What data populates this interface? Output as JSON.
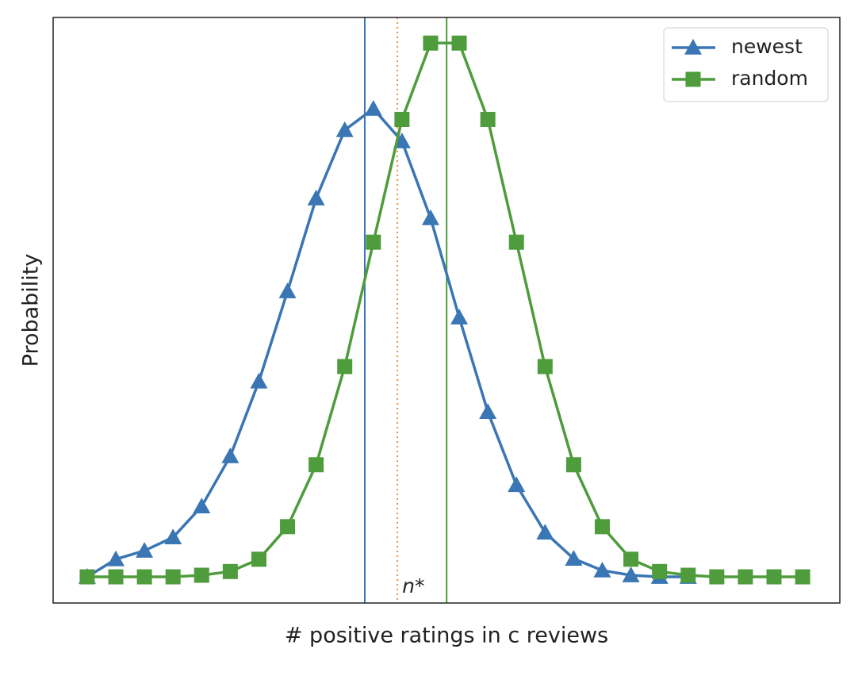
{
  "chart_data": {
    "type": "line",
    "xlabel": "# positive ratings in c reviews",
    "ylabel": "Probability",
    "x": [
      0,
      1,
      2,
      3,
      4,
      5,
      6,
      7,
      8,
      9,
      10,
      11,
      12,
      13,
      14,
      15,
      16,
      17,
      18,
      19,
      20,
      21,
      22,
      23,
      24,
      25
    ],
    "series": [
      {
        "name": "newest",
        "color": "#3a76b4",
        "marker": "triangle",
        "values": [
          0,
          0.033,
          0.049,
          0.074,
          0.132,
          0.226,
          0.366,
          0.535,
          0.709,
          0.837,
          0.877,
          0.816,
          0.672,
          0.486,
          0.309,
          0.172,
          0.083,
          0.034,
          0.012,
          0.003,
          0,
          0,
          null,
          null,
          null,
          null
        ]
      },
      {
        "name": "random",
        "color": "#4e9c3c",
        "marker": "square",
        "values": [
          0,
          0,
          0,
          0,
          0.003,
          0.01,
          0.033,
          0.094,
          0.21,
          0.394,
          0.627,
          0.857,
          1,
          1,
          0.857,
          0.627,
          0.394,
          0.21,
          0.094,
          0.033,
          0.01,
          0.003,
          0,
          0,
          0,
          0
        ]
      }
    ],
    "vlines": [
      {
        "x": 9.7,
        "color": "#3a76b4",
        "style": "solid"
      },
      {
        "x": 10.84,
        "color": "#e8913c",
        "style": "dotted"
      },
      {
        "x": 12.56,
        "color": "#4e9c3c",
        "style": "solid"
      }
    ],
    "annotation": {
      "text": "n*",
      "x": 10.84
    },
    "xlim": [
      -1.19,
      26.3
    ],
    "ylim": [
      -0.049,
      1.048
    ],
    "legend": "upper right"
  }
}
